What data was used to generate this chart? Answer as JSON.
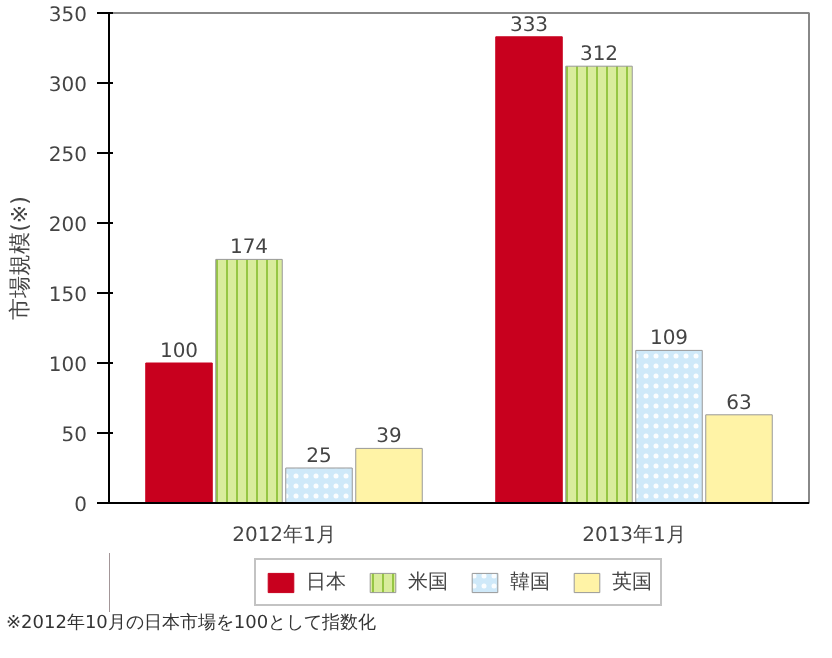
{
  "chart_data": {
    "type": "bar",
    "ylabel": "市場規模(※)",
    "categories": [
      "2012年1月",
      "2013年1月"
    ],
    "series": [
      {
        "name": "日本",
        "color": "#c8001e",
        "values": [
          100,
          333
        ]
      },
      {
        "name": "米国",
        "color": "#d9ec9c",
        "values": [
          174,
          312
        ]
      },
      {
        "name": "韓国",
        "color": "#cfe9f9",
        "values": [
          25,
          109
        ]
      },
      {
        "name": "英国",
        "color": "#fff3a6",
        "values": [
          39,
          63
        ]
      }
    ],
    "ylim": [
      0,
      350
    ],
    "yticks": [
      0,
      50,
      100,
      150,
      200,
      250,
      300,
      350
    ],
    "data_labels": true,
    "legend": "bottom",
    "grid": false,
    "annotations": [
      "※2012年10月の日本市場を100として指数化"
    ]
  }
}
